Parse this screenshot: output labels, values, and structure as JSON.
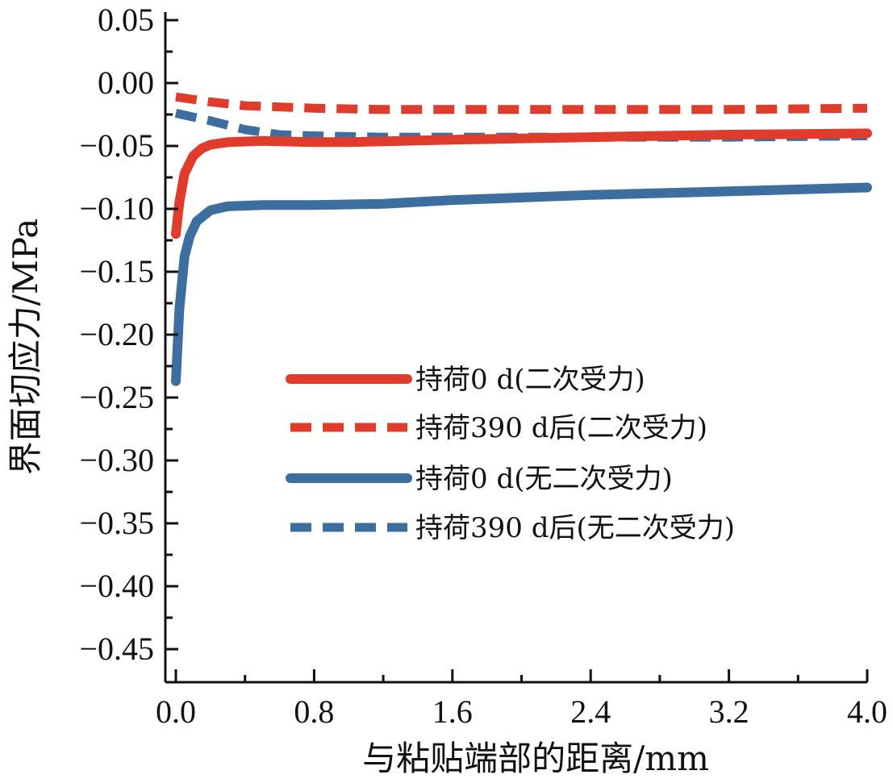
{
  "chart_data": {
    "type": "line",
    "xlabel": "与粘贴端部的距离/mm",
    "ylabel": "界面切应力/MPa",
    "xlim": [
      0.0,
      4.0
    ],
    "ylim": [
      -0.48,
      0.05
    ],
    "x_ticks": [
      0.0,
      0.8,
      1.6,
      2.4,
      3.2,
      4.0
    ],
    "x_tick_labels": [
      "0.0",
      "0.8",
      "1.6",
      "2.4",
      "3.2",
      "4.0"
    ],
    "y_ticks": [
      0.05,
      0.0,
      -0.05,
      -0.1,
      -0.15,
      -0.2,
      -0.25,
      -0.3,
      -0.35,
      -0.4,
      -0.45
    ],
    "y_tick_labels": [
      "0.05",
      "0.00",
      "−0.05",
      "−0.10",
      "−0.15",
      "−0.20",
      "−0.25",
      "−0.30",
      "−0.35",
      "−0.40",
      "−0.45"
    ],
    "legend_position": "center-right",
    "grid": false,
    "series": [
      {
        "name": "持荷0 d(二次受力)",
        "color": "#e03c2c",
        "style": "solid",
        "x": [
          0.0,
          0.02,
          0.05,
          0.1,
          0.15,
          0.2,
          0.3,
          0.5,
          0.8,
          1.0,
          1.6,
          2.4,
          3.2,
          4.0
        ],
        "y": [
          -0.12,
          -0.095,
          -0.072,
          -0.058,
          -0.052,
          -0.049,
          -0.047,
          -0.046,
          -0.047,
          -0.047,
          -0.045,
          -0.043,
          -0.041,
          -0.04
        ]
      },
      {
        "name": "持荷390 d后(二次受力)",
        "color": "#e03c2c",
        "style": "dashed",
        "x": [
          0.0,
          0.2,
          0.4,
          0.8,
          1.2,
          1.6,
          2.4,
          3.2,
          4.0
        ],
        "y": [
          -0.011,
          -0.015,
          -0.018,
          -0.02,
          -0.021,
          -0.021,
          -0.021,
          -0.021,
          -0.02
        ]
      },
      {
        "name": "持荷0 d(无二次受力)",
        "color": "#3c6fa0",
        "style": "solid",
        "x": [
          0.0,
          0.02,
          0.05,
          0.08,
          0.12,
          0.2,
          0.3,
          0.5,
          0.8,
          1.2,
          1.6,
          2.4,
          3.2,
          4.0
        ],
        "y": [
          -0.237,
          -0.18,
          -0.138,
          -0.122,
          -0.11,
          -0.101,
          -0.098,
          -0.097,
          -0.097,
          -0.096,
          -0.093,
          -0.089,
          -0.086,
          -0.083
        ]
      },
      {
        "name": "持荷390 d后(无二次受力)",
        "color": "#3c6fa0",
        "style": "dashed",
        "x": [
          0.0,
          0.2,
          0.4,
          0.6,
          0.8,
          1.2,
          1.6,
          2.4,
          3.2,
          4.0
        ],
        "y": [
          -0.024,
          -0.03,
          -0.037,
          -0.041,
          -0.042,
          -0.043,
          -0.043,
          -0.043,
          -0.043,
          -0.042
        ]
      }
    ]
  }
}
